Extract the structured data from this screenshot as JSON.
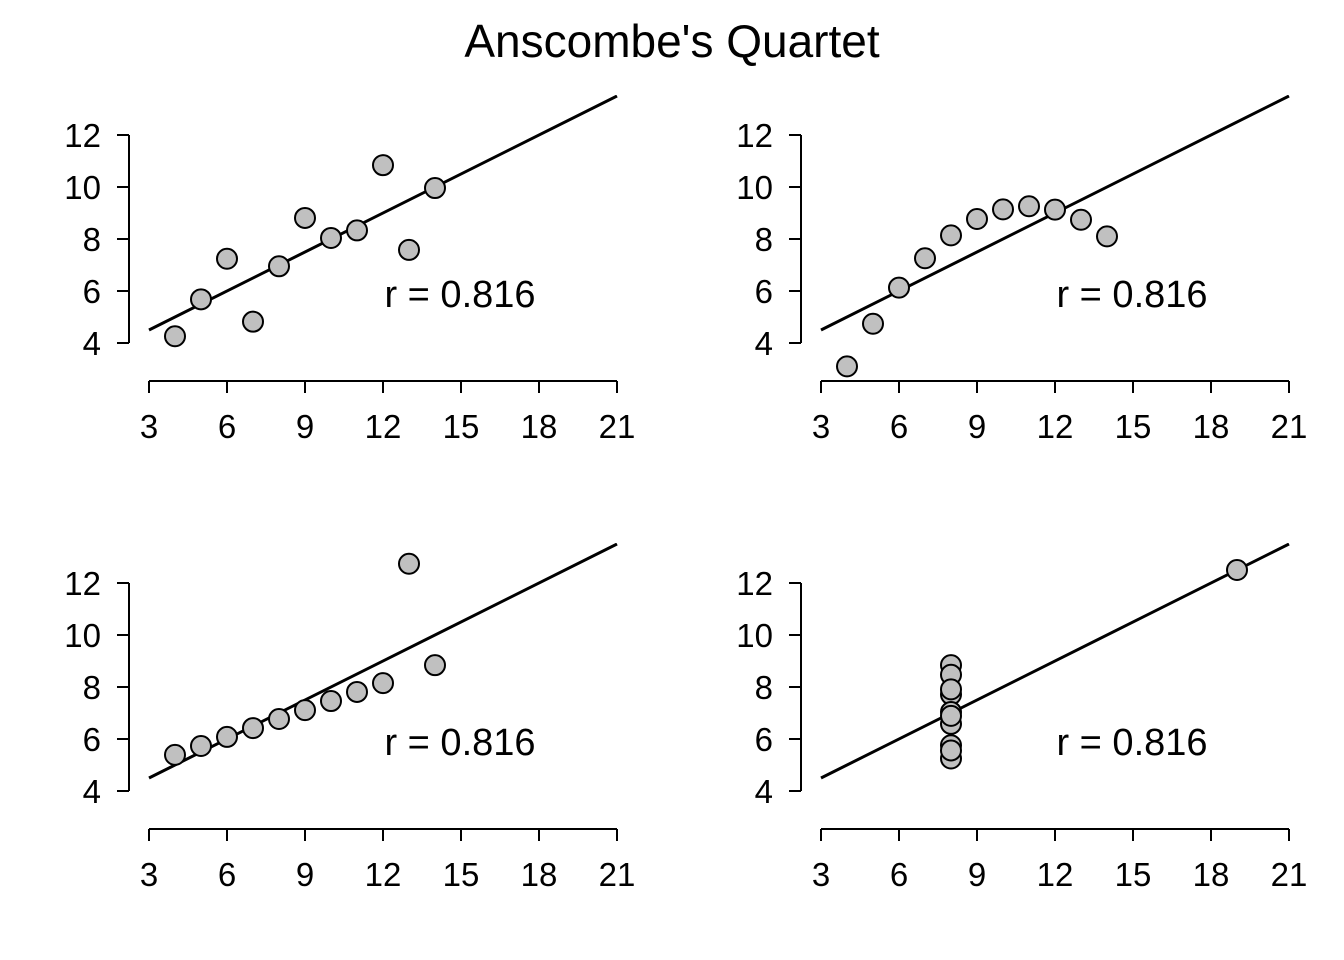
{
  "title": "Anscombe's Quartet",
  "colors": {
    "point_fill": "#c0c0c0",
    "point_stroke": "#000000",
    "line": "#000000",
    "axis": "#000000"
  },
  "chart_data": [
    {
      "type": "scatter",
      "annotation": "r = 0.816",
      "xlim": [
        3,
        21
      ],
      "ylim": [
        4,
        12
      ],
      "xticks": [
        "3",
        "6",
        "9",
        "12",
        "15",
        "18",
        "21"
      ],
      "yticks": [
        "4",
        "6",
        "8",
        "10",
        "12"
      ],
      "x": [
        10,
        8,
        13,
        9,
        11,
        14,
        6,
        4,
        12,
        7,
        5
      ],
      "y": [
        8.04,
        6.95,
        7.58,
        8.81,
        8.33,
        9.96,
        7.24,
        4.26,
        10.84,
        4.82,
        5.68
      ],
      "fit": {
        "intercept": 3.0,
        "slope": 0.5
      }
    },
    {
      "type": "scatter",
      "annotation": "r = 0.816",
      "xlim": [
        3,
        21
      ],
      "ylim": [
        4,
        12
      ],
      "xticks": [
        "3",
        "6",
        "9",
        "12",
        "15",
        "18",
        "21"
      ],
      "yticks": [
        "4",
        "6",
        "8",
        "10",
        "12"
      ],
      "x": [
        10,
        8,
        13,
        9,
        11,
        14,
        6,
        4,
        12,
        7,
        5
      ],
      "y": [
        9.14,
        8.14,
        8.74,
        8.77,
        9.26,
        8.1,
        6.13,
        3.1,
        9.13,
        7.26,
        4.74
      ],
      "fit": {
        "intercept": 3.0,
        "slope": 0.5
      }
    },
    {
      "type": "scatter",
      "annotation": "r = 0.816",
      "xlim": [
        3,
        21
      ],
      "ylim": [
        4,
        12
      ],
      "xticks": [
        "3",
        "6",
        "9",
        "12",
        "15",
        "18",
        "21"
      ],
      "yticks": [
        "4",
        "6",
        "8",
        "10",
        "12"
      ],
      "x": [
        10,
        8,
        13,
        9,
        11,
        14,
        6,
        4,
        12,
        7,
        5
      ],
      "y": [
        7.46,
        6.77,
        12.74,
        7.11,
        7.81,
        8.84,
        6.08,
        5.39,
        8.15,
        6.42,
        5.73
      ],
      "fit": {
        "intercept": 3.0,
        "slope": 0.5
      }
    },
    {
      "type": "scatter",
      "annotation": "r = 0.816",
      "xlim": [
        3,
        21
      ],
      "ylim": [
        4,
        12
      ],
      "xticks": [
        "3",
        "6",
        "9",
        "12",
        "15",
        "18",
        "21"
      ],
      "yticks": [
        "4",
        "6",
        "8",
        "10",
        "12"
      ],
      "x": [
        8,
        8,
        8,
        8,
        8,
        8,
        8,
        19,
        8,
        8,
        8
      ],
      "y": [
        6.58,
        5.76,
        7.71,
        8.84,
        8.47,
        7.04,
        5.25,
        12.5,
        5.56,
        7.91,
        6.89
      ],
      "fit": {
        "intercept": 3.0,
        "slope": 0.5
      }
    }
  ]
}
